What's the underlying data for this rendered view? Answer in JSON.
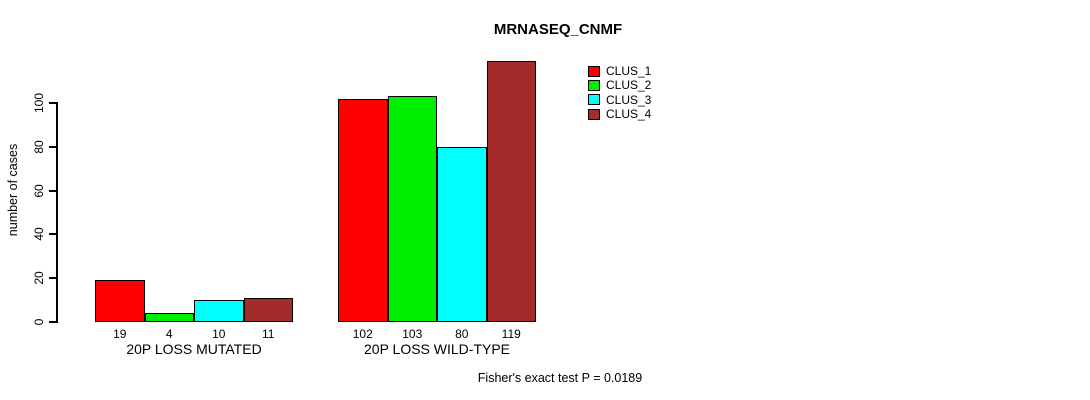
{
  "chart_data": {
    "type": "bar",
    "title": "MRNASEQ_CNMF",
    "ylabel": "number of cases",
    "xlabel": "",
    "categories": [
      "20P LOSS MUTATED",
      "20P LOSS WILD-TYPE"
    ],
    "series": [
      {
        "name": "CLUS_1",
        "color": "#ff0000",
        "values": [
          19,
          102
        ]
      },
      {
        "name": "CLUS_2",
        "color": "#00ee00",
        "values": [
          4,
          103
        ]
      },
      {
        "name": "CLUS_3",
        "color": "#00ffff",
        "values": [
          10,
          80
        ]
      },
      {
        "name": "CLUS_4",
        "color": "#a52a2a",
        "values": [
          11,
          119
        ]
      }
    ],
    "yticks": [
      0,
      20,
      40,
      60,
      80,
      100
    ],
    "ylim": [
      0,
      120
    ],
    "bar_value_labels": [
      "19",
      "4",
      "10",
      "11",
      "102",
      "103",
      "80",
      "119"
    ],
    "grid": false,
    "legend_position": "top-right",
    "annotation": "Fisher's exact test P = 0.0189",
    "colors": {
      "background": "#ffffff",
      "axis": "#000000",
      "text": "#000000"
    }
  }
}
